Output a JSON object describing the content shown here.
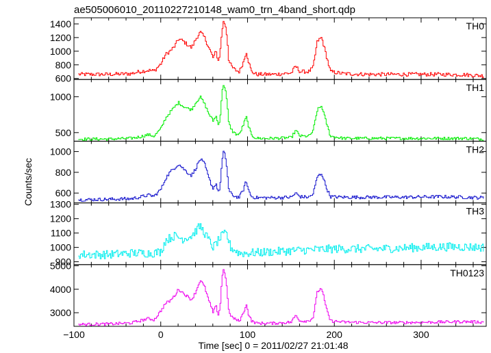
{
  "chart_data": {
    "type": "line",
    "title": "ae505006010_20110227210148_wam0_trn_4band_short.qdp",
    "xlabel": "Time [sec] 0 = 2011/02/27 21:01:48",
    "ylabel": "Counts/sec",
    "xlim": [
      -100,
      375
    ],
    "x_ticks": [
      -100,
      0,
      100,
      200,
      300
    ],
    "x_tick_labels": [
      "−100",
      "0",
      "100",
      "200",
      "300"
    ],
    "legend": "none",
    "grid": false,
    "panels": [
      {
        "name": "TH0",
        "color": "#ff0000",
        "ylim": [
          585,
          1490
        ],
        "y_ticks": [
          600,
          800,
          1000,
          1200,
          1400
        ],
        "noise": 28,
        "points": [
          [
            -95,
            660
          ],
          [
            -60,
            660
          ],
          [
            -35,
            670
          ],
          [
            -25,
            700
          ],
          [
            -15,
            720
          ],
          [
            -8,
            710
          ],
          [
            0,
            820
          ],
          [
            5,
            950
          ],
          [
            10,
            1000
          ],
          [
            15,
            1060
          ],
          [
            20,
            1180
          ],
          [
            25,
            1150
          ],
          [
            30,
            1100
          ],
          [
            35,
            1050
          ],
          [
            40,
            1180
          ],
          [
            45,
            1280
          ],
          [
            50,
            1200
          ],
          [
            55,
            1050
          ],
          [
            60,
            900
          ],
          [
            63,
            1000
          ],
          [
            66,
            850
          ],
          [
            68,
            1000
          ],
          [
            70,
            1300
          ],
          [
            72,
            1440
          ],
          [
            74,
            1380
          ],
          [
            76,
            1200
          ],
          [
            78,
            850
          ],
          [
            82,
            760
          ],
          [
            86,
            720
          ],
          [
            90,
            700
          ],
          [
            95,
            850
          ],
          [
            98,
            1000
          ],
          [
            100,
            880
          ],
          [
            104,
            700
          ],
          [
            110,
            660
          ],
          [
            130,
            660
          ],
          [
            150,
            680
          ],
          [
            155,
            780
          ],
          [
            160,
            700
          ],
          [
            170,
            700
          ],
          [
            175,
            760
          ],
          [
            180,
            1150
          ],
          [
            185,
            1200
          ],
          [
            190,
            950
          ],
          [
            195,
            700
          ],
          [
            210,
            670
          ],
          [
            240,
            660
          ],
          [
            280,
            660
          ],
          [
            320,
            660
          ],
          [
            350,
            655
          ],
          [
            370,
            640
          ]
        ]
      },
      {
        "name": "TH1",
        "color": "#00ee00",
        "ylim": [
          380,
          1240
        ],
        "y_ticks": [
          500,
          1000
        ],
        "y_tick_labels": [
          "500",
          "1000"
        ],
        "noise": 20,
        "points": [
          [
            -95,
            410
          ],
          [
            -60,
            410
          ],
          [
            -35,
            420
          ],
          [
            -25,
            440
          ],
          [
            -15,
            470
          ],
          [
            -8,
            450
          ],
          [
            0,
            560
          ],
          [
            5,
            700
          ],
          [
            10,
            780
          ],
          [
            15,
            850
          ],
          [
            20,
            920
          ],
          [
            25,
            870
          ],
          [
            30,
            840
          ],
          [
            35,
            820
          ],
          [
            40,
            920
          ],
          [
            45,
            1000
          ],
          [
            50,
            900
          ],
          [
            55,
            760
          ],
          [
            60,
            660
          ],
          [
            63,
            740
          ],
          [
            66,
            600
          ],
          [
            68,
            720
          ],
          [
            70,
            1050
          ],
          [
            72,
            1180
          ],
          [
            74,
            1100
          ],
          [
            76,
            900
          ],
          [
            78,
            620
          ],
          [
            82,
            520
          ],
          [
            86,
            480
          ],
          [
            90,
            470
          ],
          [
            95,
            620
          ],
          [
            98,
            720
          ],
          [
            100,
            620
          ],
          [
            104,
            460
          ],
          [
            110,
            420
          ],
          [
            130,
            420
          ],
          [
            150,
            430
          ],
          [
            155,
            530
          ],
          [
            160,
            450
          ],
          [
            170,
            450
          ],
          [
            175,
            520
          ],
          [
            180,
            820
          ],
          [
            185,
            870
          ],
          [
            190,
            650
          ],
          [
            195,
            450
          ],
          [
            210,
            420
          ],
          [
            240,
            420
          ],
          [
            280,
            420
          ],
          [
            320,
            420
          ],
          [
            350,
            420
          ],
          [
            370,
            410
          ]
        ]
      },
      {
        "name": "TH2",
        "color": "#1010cc",
        "ylim": [
          505,
          1100
        ],
        "y_ticks": [
          600,
          800,
          1000
        ],
        "noise": 16,
        "points": [
          [
            -95,
            535
          ],
          [
            -60,
            540
          ],
          [
            -35,
            545
          ],
          [
            -25,
            560
          ],
          [
            -15,
            580
          ],
          [
            -8,
            570
          ],
          [
            0,
            640
          ],
          [
            5,
            740
          ],
          [
            10,
            800
          ],
          [
            15,
            840
          ],
          [
            20,
            880
          ],
          [
            25,
            840
          ],
          [
            30,
            800
          ],
          [
            35,
            770
          ],
          [
            40,
            840
          ],
          [
            45,
            930
          ],
          [
            50,
            880
          ],
          [
            55,
            740
          ],
          [
            60,
            640
          ],
          [
            63,
            700
          ],
          [
            66,
            600
          ],
          [
            68,
            680
          ],
          [
            70,
            900
          ],
          [
            72,
            1000
          ],
          [
            74,
            950
          ],
          [
            76,
            820
          ],
          [
            78,
            620
          ],
          [
            82,
            580
          ],
          [
            86,
            565
          ],
          [
            90,
            560
          ],
          [
            95,
            640
          ],
          [
            98,
            720
          ],
          [
            100,
            640
          ],
          [
            104,
            565
          ],
          [
            110,
            555
          ],
          [
            130,
            555
          ],
          [
            150,
            560
          ],
          [
            155,
            600
          ],
          [
            160,
            565
          ],
          [
            170,
            560
          ],
          [
            175,
            590
          ],
          [
            180,
            760
          ],
          [
            185,
            790
          ],
          [
            190,
            660
          ],
          [
            195,
            565
          ],
          [
            210,
            560
          ],
          [
            240,
            560
          ],
          [
            280,
            560
          ],
          [
            320,
            565
          ],
          [
            350,
            560
          ],
          [
            370,
            555
          ]
        ]
      },
      {
        "name": "TH3",
        "color": "#00eeee",
        "ylim": [
          880,
          1310
        ],
        "y_ticks": [
          900,
          1000,
          1100,
          1200,
          1300
        ],
        "noise": 30,
        "points": [
          [
            -95,
            950
          ],
          [
            -60,
            950
          ],
          [
            -35,
            960
          ],
          [
            -10,
            960
          ],
          [
            0,
            970
          ],
          [
            5,
            1050
          ],
          [
            15,
            1080
          ],
          [
            25,
            1060
          ],
          [
            35,
            1080
          ],
          [
            45,
            1150
          ],
          [
            50,
            1100
          ],
          [
            60,
            1000
          ],
          [
            70,
            1080
          ],
          [
            75,
            1100
          ],
          [
            80,
            1000
          ],
          [
            90,
            960
          ],
          [
            100,
            960
          ],
          [
            130,
            970
          ],
          [
            160,
            980
          ],
          [
            200,
            990
          ],
          [
            250,
            990
          ],
          [
            300,
            1000
          ],
          [
            340,
            1005
          ],
          [
            370,
            1000
          ]
        ]
      },
      {
        "name": "TH0123",
        "color": "#ee00ee",
        "ylim": [
          2420,
          5050
        ],
        "y_ticks": [
          3000,
          4000,
          5000
        ],
        "noise": 60,
        "points": [
          [
            -95,
            2500
          ],
          [
            -60,
            2520
          ],
          [
            -35,
            2560
          ],
          [
            -25,
            2650
          ],
          [
            -15,
            2750
          ],
          [
            -8,
            2700
          ],
          [
            0,
            3100
          ],
          [
            5,
            3400
          ],
          [
            10,
            3500
          ],
          [
            15,
            3700
          ],
          [
            20,
            4000
          ],
          [
            25,
            3850
          ],
          [
            30,
            3700
          ],
          [
            35,
            3550
          ],
          [
            40,
            3900
          ],
          [
            45,
            4400
          ],
          [
            50,
            4100
          ],
          [
            55,
            3500
          ],
          [
            60,
            3000
          ],
          [
            63,
            3300
          ],
          [
            66,
            2900
          ],
          [
            68,
            3300
          ],
          [
            70,
            4500
          ],
          [
            72,
            4850
          ],
          [
            74,
            4600
          ],
          [
            76,
            3900
          ],
          [
            78,
            3000
          ],
          [
            82,
            2800
          ],
          [
            86,
            2700
          ],
          [
            90,
            2650
          ],
          [
            95,
            3000
          ],
          [
            98,
            3400
          ],
          [
            100,
            3000
          ],
          [
            104,
            2650
          ],
          [
            110,
            2550
          ],
          [
            130,
            2550
          ],
          [
            150,
            2600
          ],
          [
            155,
            2900
          ],
          [
            160,
            2650
          ],
          [
            170,
            2650
          ],
          [
            175,
            2800
          ],
          [
            180,
            3900
          ],
          [
            185,
            4050
          ],
          [
            190,
            3200
          ],
          [
            195,
            2650
          ],
          [
            210,
            2600
          ],
          [
            240,
            2580
          ],
          [
            280,
            2580
          ],
          [
            320,
            2600
          ],
          [
            350,
            2620
          ],
          [
            370,
            2600
          ]
        ]
      }
    ]
  }
}
